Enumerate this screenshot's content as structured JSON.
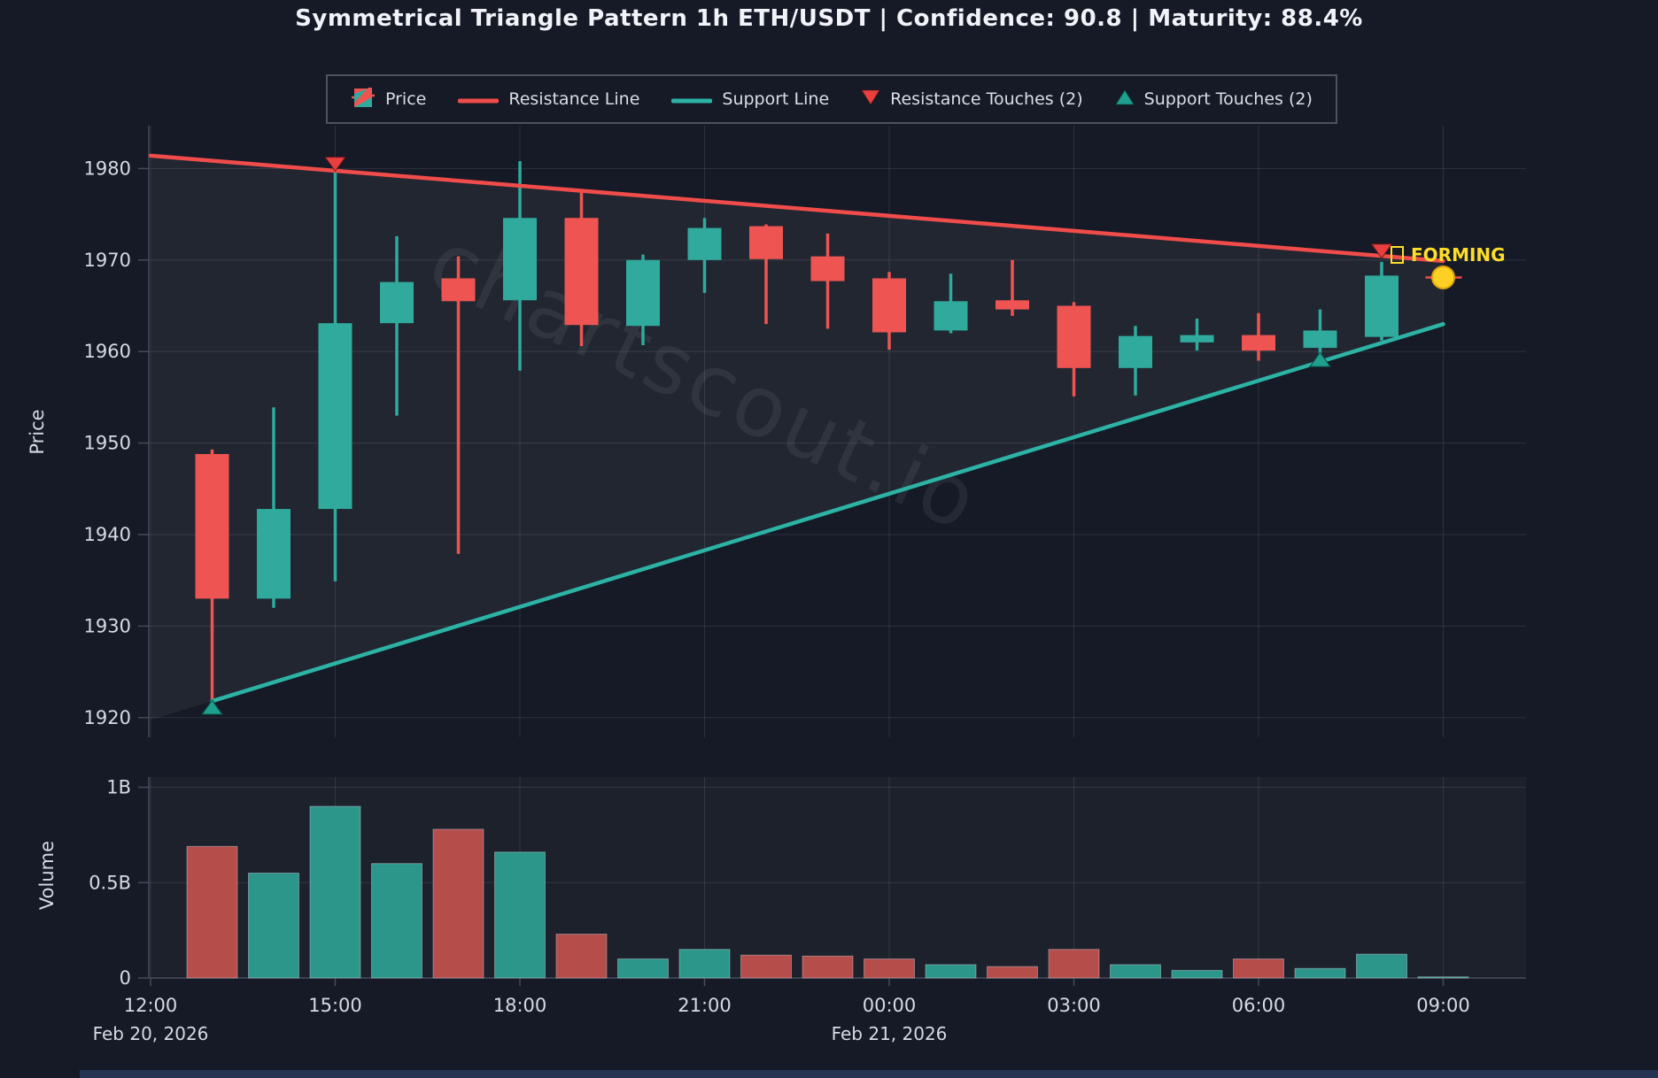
{
  "title": "Symmetrical Triangle Pattern 1h ETH/USDT | Confidence: 90.8 | Maturity: 88.4%",
  "watermark": "chartscout.io",
  "forming": {
    "label": "FORMING"
  },
  "legend": {
    "items": [
      {
        "id": "price",
        "label": "Price"
      },
      {
        "id": "resistance-line",
        "label": "Resistance Line"
      },
      {
        "id": "support-line",
        "label": "Support Line"
      },
      {
        "id": "resistance-touches",
        "label": "Resistance Touches (2)"
      },
      {
        "id": "support-touches",
        "label": "Support Touches (2)"
      }
    ]
  },
  "axes": {
    "price_label": "Price",
    "volume_label": "Volume",
    "price_ticks": [
      1920,
      1930,
      1940,
      1950,
      1960,
      1970,
      1980
    ],
    "volume_ticks": [
      {
        "v": 0,
        "label": "0"
      },
      {
        "v": 0.5,
        "label": "0.5B"
      },
      {
        "v": 1,
        "label": "1B"
      }
    ],
    "time_ticks": [
      {
        "h": 0,
        "label": "12:00"
      },
      {
        "h": 3,
        "label": "15:00"
      },
      {
        "h": 6,
        "label": "18:00"
      },
      {
        "h": 9,
        "label": "21:00"
      },
      {
        "h": 12,
        "label": "00:00"
      },
      {
        "h": 15,
        "label": "03:00"
      },
      {
        "h": 18,
        "label": "06:00"
      },
      {
        "h": 21,
        "label": "09:00"
      }
    ],
    "date_labels": [
      {
        "h": 0,
        "label": "Feb 20, 2026"
      },
      {
        "h": 12,
        "label": "Feb 21, 2026"
      }
    ]
  },
  "chart_data": {
    "type": "candlestick+volume",
    "title": "Symmetrical Triangle Pattern 1h ETH/USDT | Confidence: 90.8 | Maturity: 88.4%",
    "ylabel_price": "Price",
    "ylabel_volume": "Volume",
    "price_ylim": [
      1918,
      1984.8
    ],
    "volume_ylim_b": [
      0,
      1.05
    ],
    "x_domain_hours_after_1200": [
      0,
      22.35
    ],
    "candles": [
      {
        "h": 1,
        "time": "13:00",
        "open": 1948.8,
        "high": 1949.3,
        "low": 1922.0,
        "close": 1933.0,
        "volume_b": 0.69,
        "dir": "down"
      },
      {
        "h": 2,
        "time": "14:00",
        "open": 1933.0,
        "high": 1953.9,
        "low": 1932.0,
        "close": 1942.8,
        "volume_b": 0.55,
        "dir": "up"
      },
      {
        "h": 3,
        "time": "15:00",
        "open": 1942.8,
        "high": 1980.0,
        "low": 1934.9,
        "close": 1963.1,
        "volume_b": 0.9,
        "dir": "up"
      },
      {
        "h": 4,
        "time": "16:00",
        "open": 1963.1,
        "high": 1972.6,
        "low": 1953.0,
        "close": 1967.6,
        "volume_b": 0.6,
        "dir": "up"
      },
      {
        "h": 5,
        "time": "17:00",
        "open": 1968.0,
        "high": 1970.4,
        "low": 1937.9,
        "close": 1965.5,
        "volume_b": 0.78,
        "dir": "down"
      },
      {
        "h": 6,
        "time": "18:00",
        "open": 1965.6,
        "high": 1980.8,
        "low": 1957.9,
        "close": 1974.6,
        "volume_b": 0.66,
        "dir": "up"
      },
      {
        "h": 7,
        "time": "19:00",
        "open": 1974.6,
        "high": 1977.4,
        "low": 1960.6,
        "close": 1962.9,
        "volume_b": 0.23,
        "dir": "down"
      },
      {
        "h": 8,
        "time": "20:00",
        "open": 1962.8,
        "high": 1970.6,
        "low": 1960.7,
        "close": 1970.0,
        "volume_b": 0.1,
        "dir": "up"
      },
      {
        "h": 9,
        "time": "21:00",
        "open": 1970.0,
        "high": 1974.6,
        "low": 1966.4,
        "close": 1973.5,
        "volume_b": 0.15,
        "dir": "up"
      },
      {
        "h": 10,
        "time": "22:00",
        "open": 1973.7,
        "high": 1973.9,
        "low": 1963.0,
        "close": 1970.1,
        "volume_b": 0.12,
        "dir": "down"
      },
      {
        "h": 11,
        "time": "23:00",
        "open": 1970.4,
        "high": 1972.9,
        "low": 1962.5,
        "close": 1967.7,
        "volume_b": 0.115,
        "dir": "down"
      },
      {
        "h": 12,
        "time": "00:00",
        "open": 1968.0,
        "high": 1968.7,
        "low": 1960.2,
        "close": 1962.1,
        "volume_b": 0.1,
        "dir": "down"
      },
      {
        "h": 13,
        "time": "01:00",
        "open": 1962.3,
        "high": 1968.5,
        "low": 1962.0,
        "close": 1965.5,
        "volume_b": 0.07,
        "dir": "up"
      },
      {
        "h": 14,
        "time": "02:00",
        "open": 1965.6,
        "high": 1970.0,
        "low": 1963.9,
        "close": 1964.6,
        "volume_b": 0.06,
        "dir": "down"
      },
      {
        "h": 15,
        "time": "03:00",
        "open": 1965.0,
        "high": 1965.4,
        "low": 1955.1,
        "close": 1958.2,
        "volume_b": 0.15,
        "dir": "down"
      },
      {
        "h": 16,
        "time": "04:00",
        "open": 1958.2,
        "high": 1962.8,
        "low": 1955.2,
        "close": 1961.7,
        "volume_b": 0.07,
        "dir": "up"
      },
      {
        "h": 17,
        "time": "05:00",
        "open": 1961.0,
        "high": 1963.6,
        "low": 1960.1,
        "close": 1961.8,
        "volume_b": 0.04,
        "dir": "up"
      },
      {
        "h": 18,
        "time": "06:00",
        "open": 1961.8,
        "high": 1964.2,
        "low": 1959.0,
        "close": 1960.1,
        "volume_b": 0.1,
        "dir": "down"
      },
      {
        "h": 19,
        "time": "07:00",
        "open": 1960.4,
        "high": 1964.6,
        "low": 1959.6,
        "close": 1962.3,
        "volume_b": 0.05,
        "dir": "up"
      },
      {
        "h": 20,
        "time": "08:00",
        "open": 1961.6,
        "high": 1969.8,
        "low": 1961.2,
        "close": 1968.3,
        "volume_b": 0.125,
        "dir": "up"
      }
    ],
    "forming_candle": {
      "h": 21,
      "time": "09:00",
      "price": 1968.1,
      "volume_b": 0.006
    },
    "resistance_line": {
      "from": {
        "h": 0,
        "price": 1981.4
      },
      "to": {
        "h": 21,
        "price": 1969.9
      }
    },
    "support_line": {
      "from": {
        "h": 1,
        "price": 1921.8
      },
      "to": {
        "h": 21,
        "price": 1963.0
      }
    },
    "resistance_touches": [
      {
        "h": 3,
        "price": 1979.7
      },
      {
        "h": 20,
        "price": 1970.2
      }
    ],
    "support_touches": [
      {
        "h": 1,
        "price": 1921.9
      },
      {
        "h": 19,
        "price": 1959.9
      }
    ]
  },
  "colors": {
    "background": "#151a26",
    "candle_up": "#2faa9d",
    "candle_down": "#ee5552",
    "volume_up": "#2d968b",
    "volume_down": "#b54d4b",
    "resistance": "#f04c4a",
    "support": "#2cb3a5",
    "marker_resistance": "#e9403f",
    "marker_support": "#1fa08f",
    "forming_dot": "#ffd024",
    "forming_text": "#ffdd28",
    "axis_text": "#d6dae3",
    "grid": "rgba(255,255,255,0.10)",
    "triangle_fill": "rgba(255,255,255,0.055)",
    "panel_fill": "rgba(255,255,255,0.03)",
    "watermark": "rgba(198,206,226,0.085)"
  }
}
